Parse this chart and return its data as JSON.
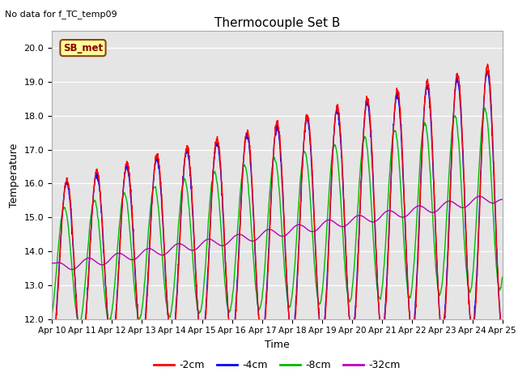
{
  "title": "Thermocouple Set B",
  "no_data_label": "No data for f_TC_temp09",
  "sb_met_label": "SB_met",
  "xlabel": "Time",
  "ylabel": "Temperature",
  "ylim": [
    12.0,
    20.5
  ],
  "yticks": [
    12.0,
    13.0,
    14.0,
    15.0,
    16.0,
    17.0,
    18.0,
    19.0,
    20.0
  ],
  "xtick_labels": [
    "Apr 10",
    "Apr 11",
    "Apr 12",
    "Apr 13",
    "Apr 14",
    "Apr 15",
    "Apr 16",
    "Apr 17",
    "Apr 18",
    "Apr 19",
    "Apr 20",
    "Apr 21",
    "Apr 22",
    "Apr 23",
    "Apr 24",
    "Apr 25"
  ],
  "colors": {
    "2cm": "#ff0000",
    "4cm": "#0000ff",
    "8cm": "#00bb00",
    "32cm": "#bb00bb"
  },
  "legend_labels": [
    "-2cm",
    "-4cm",
    "-8cm",
    "-32cm"
  ],
  "background_color": "#e5e5e5",
  "fig_background": "#ffffff",
  "sb_met_box_color": "#ffff99",
  "sb_met_text_color": "#8b0000",
  "sb_met_border_color": "#8b4513"
}
